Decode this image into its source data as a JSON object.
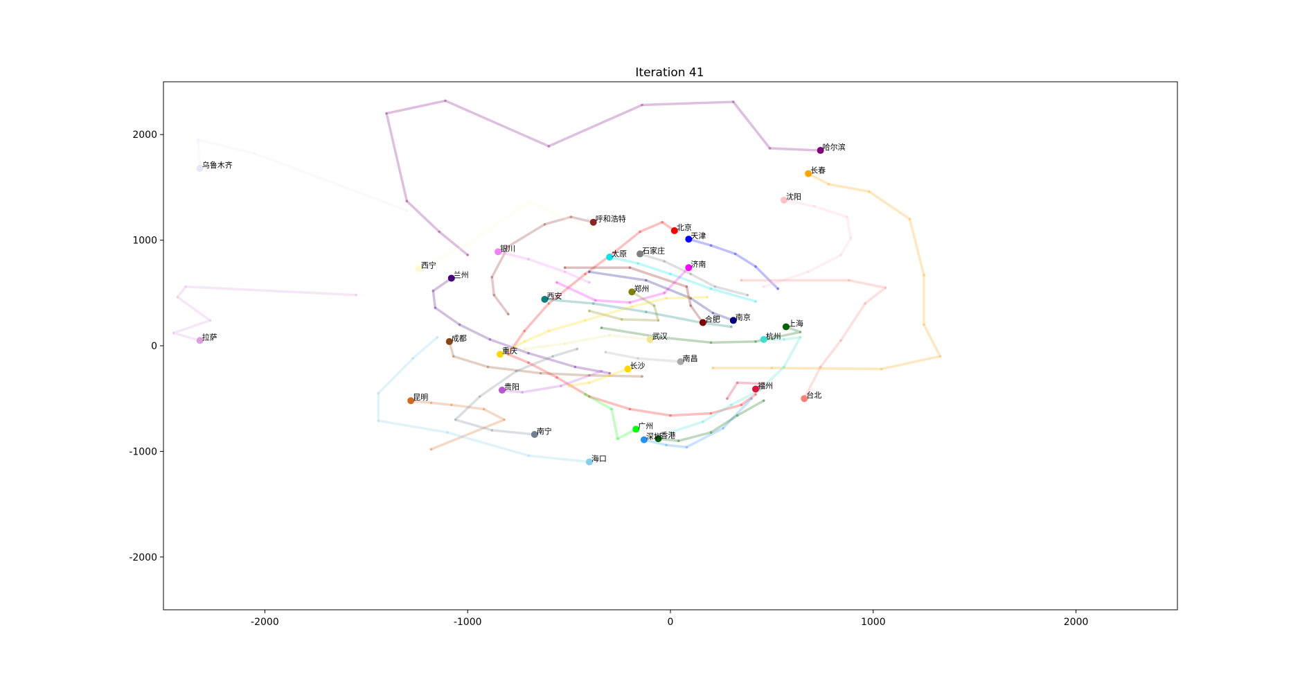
{
  "chart_data": {
    "type": "scatter",
    "title": "Iteration 41",
    "xlabel": "",
    "ylabel": "",
    "xlim": [
      -2500,
      2500
    ],
    "ylim": [
      -2500,
      2500
    ],
    "xticks": [
      -2000,
      -1000,
      0,
      1000,
      2000
    ],
    "yticks": [
      2000,
      1000,
      0,
      -1000,
      -2000
    ],
    "xtick_labels": [
      "-2000",
      "-1000",
      "0",
      "1000",
      "2000"
    ],
    "ytick_labels": [
      "2000",
      "1000",
      "0",
      "-1000",
      "-2000"
    ],
    "grid": false,
    "legend": "none",
    "series": [
      {
        "name": "北京",
        "color": "#ff0000",
        "x": 20,
        "y": 1090,
        "trail": [
          [
            20,
            1090
          ],
          [
            -40,
            1170
          ],
          [
            -150,
            1080
          ],
          [
            -280,
            880
          ],
          [
            -420,
            680
          ],
          [
            -600,
            400
          ],
          [
            -720,
            140
          ],
          [
            -800,
            -80
          ],
          [
            -700,
            -160
          ],
          [
            -560,
            -300
          ],
          [
            -400,
            -480
          ],
          [
            -200,
            -600
          ],
          [
            0,
            -660
          ],
          [
            200,
            -640
          ],
          [
            350,
            -560
          ],
          [
            420,
            -460
          ]
        ]
      },
      {
        "name": "天津",
        "color": "#0000ff",
        "x": 90,
        "y": 1010,
        "trail": [
          [
            90,
            1010
          ],
          [
            200,
            950
          ],
          [
            320,
            870
          ],
          [
            420,
            750
          ],
          [
            530,
            540
          ]
        ]
      },
      {
        "name": "哈尔滨",
        "color": "#800080",
        "x": 740,
        "y": 1850,
        "trail": [
          [
            740,
            1850
          ],
          [
            490,
            1870
          ],
          [
            310,
            2310
          ],
          [
            -140,
            2280
          ],
          [
            -600,
            1890
          ],
          [
            -1110,
            2320
          ],
          [
            -1400,
            2200
          ],
          [
            -1300,
            1370
          ],
          [
            -1140,
            1080
          ],
          [
            -1000,
            860
          ]
        ]
      },
      {
        "name": "长春",
        "color": "#ffa500",
        "x": 680,
        "y": 1630,
        "trail": [
          [
            680,
            1630
          ],
          [
            780,
            1530
          ],
          [
            980,
            1460
          ],
          [
            1180,
            1200
          ],
          [
            1250,
            670
          ],
          [
            1250,
            200
          ],
          [
            1330,
            -100
          ],
          [
            1040,
            -220
          ],
          [
            500,
            -210
          ],
          [
            210,
            -210
          ]
        ]
      },
      {
        "name": "沈阳",
        "color": "#ffc0cb",
        "x": 560,
        "y": 1380,
        "trail": [
          [
            560,
            1380
          ],
          [
            710,
            1320
          ],
          [
            870,
            1220
          ],
          [
            890,
            1020
          ],
          [
            840,
            860
          ],
          [
            680,
            700
          ],
          [
            460,
            560
          ]
        ]
      },
      {
        "name": "乌鲁木齐",
        "color": "#e6e6fa",
        "x": -2320,
        "y": 1680,
        "trail": [
          [
            -2320,
            1680
          ],
          [
            -2330,
            1950
          ],
          [
            -2050,
            1820
          ],
          [
            -1300,
            1280
          ]
        ]
      },
      {
        "name": "呼和浩特",
        "color": "#8b2323",
        "x": -380,
        "y": 1170,
        "trail": [
          [
            -380,
            1170
          ],
          [
            -490,
            1220
          ],
          [
            -620,
            1150
          ],
          [
            -800,
            940
          ],
          [
            -880,
            650
          ],
          [
            -870,
            480
          ],
          [
            -800,
            300
          ]
        ]
      },
      {
        "name": "石家庄",
        "color": "#808080",
        "x": -150,
        "y": 870,
        "trail": [
          [
            -150,
            870
          ],
          [
            -30,
            800
          ],
          [
            100,
            680
          ],
          [
            220,
            560
          ],
          [
            380,
            480
          ]
        ]
      },
      {
        "name": "太原",
        "color": "#00e5ee",
        "x": -300,
        "y": 840,
        "trail": [
          [
            -300,
            840
          ],
          [
            -160,
            780
          ],
          [
            0,
            680
          ],
          [
            200,
            540
          ],
          [
            420,
            420
          ]
        ]
      },
      {
        "name": "银川",
        "color": "#ee82ee",
        "x": -850,
        "y": 890,
        "trail": [
          [
            -850,
            890
          ],
          [
            -700,
            820
          ],
          [
            -520,
            700
          ],
          [
            -400,
            600
          ]
        ]
      },
      {
        "name": "西宁",
        "color": "#fffacd",
        "x": -1240,
        "y": 730,
        "trail": [
          [
            -1240,
            730
          ],
          [
            -1000,
            960
          ],
          [
            -700,
            1360
          ],
          [
            -380,
            1100
          ]
        ]
      },
      {
        "name": "兰州",
        "color": "#4b0082",
        "x": -1080,
        "y": 640,
        "trail": [
          [
            -1080,
            640
          ],
          [
            -1170,
            520
          ],
          [
            -1160,
            360
          ],
          [
            -1040,
            200
          ],
          [
            -890,
            60
          ],
          [
            -700,
            -70
          ],
          [
            -470,
            -200
          ],
          [
            -300,
            -260
          ]
        ]
      },
      {
        "name": "济南",
        "color": "#ff00ff",
        "x": 90,
        "y": 740,
        "trail": [
          [
            90,
            740
          ],
          [
            -30,
            500
          ],
          [
            -200,
            410
          ],
          [
            -370,
            430
          ],
          [
            -560,
            600
          ]
        ]
      },
      {
        "name": "郑州",
        "color": "#808000",
        "x": -190,
        "y": 510,
        "trail": [
          [
            -190,
            510
          ],
          [
            -80,
            380
          ],
          [
            -60,
            240
          ],
          [
            -240,
            250
          ],
          [
            -400,
            330
          ]
        ]
      },
      {
        "name": "西安",
        "color": "#008080",
        "x": -620,
        "y": 440,
        "trail": [
          [
            -620,
            440
          ],
          [
            -380,
            400
          ],
          [
            -120,
            320
          ],
          [
            150,
            220
          ],
          [
            300,
            180
          ]
        ]
      },
      {
        "name": "合肥",
        "color": "#800000",
        "x": 160,
        "y": 220,
        "trail": [
          [
            160,
            220
          ],
          [
            100,
            380
          ],
          [
            80,
            560
          ],
          [
            -200,
            740
          ],
          [
            -520,
            740
          ]
        ]
      },
      {
        "name": "南京",
        "color": "#000080",
        "x": 310,
        "y": 240,
        "trail": [
          [
            310,
            240
          ],
          [
            210,
            310
          ],
          [
            100,
            450
          ],
          [
            -120,
            620
          ],
          [
            -400,
            700
          ]
        ]
      },
      {
        "name": "上海",
        "color": "#006400",
        "x": 570,
        "y": 180,
        "trail": [
          [
            570,
            180
          ],
          [
            640,
            130
          ],
          [
            420,
            40
          ],
          [
            200,
            30
          ],
          [
            -50,
            80
          ],
          [
            -340,
            170
          ]
        ]
      },
      {
        "name": "杭州",
        "color": "#40e0d0",
        "x": 460,
        "y": 60,
        "trail": [
          [
            460,
            60
          ],
          [
            560,
            60
          ],
          [
            640,
            80
          ],
          [
            560,
            -200
          ],
          [
            440,
            -420
          ],
          [
            300,
            -560
          ],
          [
            160,
            -720
          ],
          [
            0,
            -820
          ]
        ]
      },
      {
        "name": "成都",
        "color": "#8b4513",
        "x": -1090,
        "y": 40,
        "trail": [
          [
            -1090,
            40
          ],
          [
            -1070,
            -100
          ],
          [
            -900,
            -200
          ],
          [
            -640,
            -260
          ],
          [
            -400,
            -280
          ],
          [
            -140,
            -290
          ]
        ]
      },
      {
        "name": "重庆",
        "color": "#ffd700",
        "x": -840,
        "y": -80,
        "trail": [
          [
            -840,
            -80
          ],
          [
            -720,
            40
          ],
          [
            -600,
            140
          ],
          [
            -420,
            240
          ],
          [
            -190,
            370
          ],
          [
            -20,
            450
          ],
          [
            180,
            460
          ]
        ]
      },
      {
        "name": "武汉",
        "color": "#f0e68c",
        "x": -100,
        "y": 60,
        "trail": [
          [
            -100,
            60
          ],
          [
            -300,
            100
          ],
          [
            -520,
            20
          ],
          [
            -720,
            -30
          ]
        ]
      },
      {
        "name": "长沙",
        "color": "#ffd700",
        "x": -210,
        "y": -220,
        "trail": [
          [
            -210,
            -220
          ],
          [
            -300,
            -280
          ],
          [
            -400,
            -350
          ],
          [
            -500,
            -380
          ]
        ]
      },
      {
        "name": "南昌",
        "color": "#a9a9a9",
        "x": 50,
        "y": -150,
        "trail": [
          [
            50,
            -150
          ],
          [
            -160,
            -120
          ],
          [
            -320,
            -60
          ]
        ]
      },
      {
        "name": "拉萨",
        "color": "#dda0dd",
        "x": -2320,
        "y": 50,
        "trail": [
          [
            -2320,
            50
          ],
          [
            -2450,
            120
          ],
          [
            -2270,
            240
          ],
          [
            -2430,
            460
          ],
          [
            -2390,
            560
          ],
          [
            -1550,
            480
          ]
        ]
      },
      {
        "name": "贵阳",
        "color": "#ba55d3",
        "x": -830,
        "y": -420,
        "trail": [
          [
            -830,
            -420
          ],
          [
            -730,
            -440
          ],
          [
            -540,
            -380
          ],
          [
            -340,
            -240
          ]
        ]
      },
      {
        "name": "昆明",
        "color": "#d2691e",
        "x": -1280,
        "y": -520,
        "trail": [
          [
            -1280,
            -520
          ],
          [
            -1180,
            -540
          ],
          [
            -1080,
            -560
          ],
          [
            -920,
            -600
          ],
          [
            -820,
            -700
          ],
          [
            -1180,
            -980
          ]
        ]
      },
      {
        "name": "福州",
        "color": "#dc143c",
        "x": 420,
        "y": -410,
        "trail": [
          [
            420,
            -410
          ],
          [
            460,
            -360
          ],
          [
            330,
            -350
          ],
          [
            280,
            -500
          ]
        ]
      },
      {
        "name": "台北",
        "color": "#fa8072",
        "x": 660,
        "y": -500,
        "trail": [
          [
            660,
            -500
          ],
          [
            740,
            -200
          ],
          [
            840,
            50
          ],
          [
            960,
            400
          ],
          [
            1060,
            550
          ],
          [
            880,
            620
          ],
          [
            350,
            620
          ]
        ]
      },
      {
        "name": "南宁",
        "color": "#708090",
        "x": -670,
        "y": -840,
        "trail": [
          [
            -670,
            -840
          ],
          [
            -880,
            -800
          ],
          [
            -1060,
            -700
          ],
          [
            -940,
            -480
          ],
          [
            -760,
            -240
          ],
          [
            -580,
            -100
          ],
          [
            -460,
            -30
          ]
        ]
      },
      {
        "name": "广州",
        "color": "#00ff00",
        "x": -170,
        "y": -790,
        "trail": [
          [
            -170,
            -790
          ],
          [
            -260,
            -880
          ],
          [
            -290,
            -600
          ],
          [
            -420,
            -460
          ]
        ]
      },
      {
        "name": "深圳",
        "color": "#1e90ff",
        "x": -130,
        "y": -890,
        "trail": [
          [
            -130,
            -890
          ],
          [
            -20,
            -940
          ],
          [
            80,
            -960
          ],
          [
            260,
            -780
          ],
          [
            400,
            -500
          ]
        ]
      },
      {
        "name": "香港",
        "color": "#006400",
        "x": -60,
        "y": -880,
        "trail": [
          [
            -60,
            -880
          ],
          [
            40,
            -900
          ],
          [
            200,
            -820
          ],
          [
            330,
            -660
          ],
          [
            460,
            -520
          ]
        ]
      },
      {
        "name": "海口",
        "color": "#87ceeb",
        "x": -400,
        "y": -1100,
        "trail": [
          [
            -400,
            -1100
          ],
          [
            -700,
            -1040
          ],
          [
            -1100,
            -820
          ],
          [
            -1440,
            -710
          ],
          [
            -1440,
            -450
          ],
          [
            -1270,
            -120
          ],
          [
            -1150,
            80
          ]
        ]
      }
    ]
  }
}
